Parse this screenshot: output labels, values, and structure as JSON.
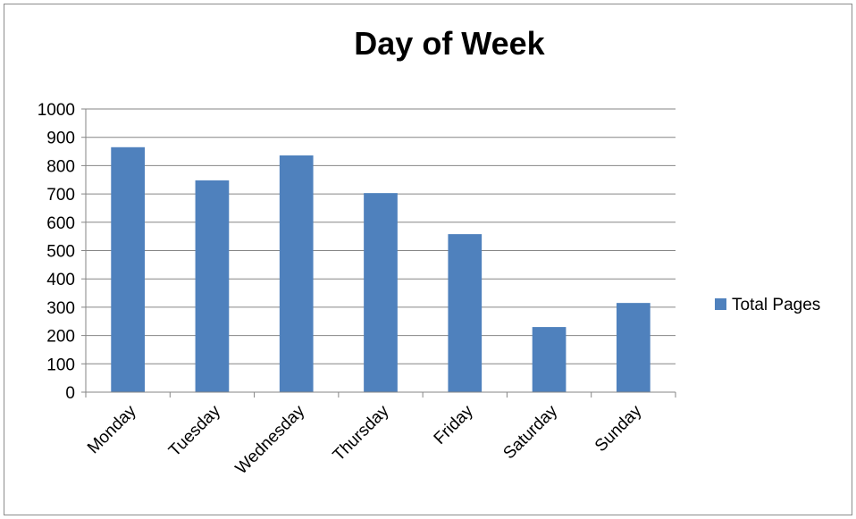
{
  "chart_data": {
    "type": "bar",
    "title": "Day of Week",
    "xlabel": "",
    "ylabel": "",
    "categories": [
      "Monday",
      "Tuesday",
      "Wednesday",
      "Thursday",
      "Friday",
      "Saturday",
      "Sunday"
    ],
    "series": [
      {
        "name": "Total Pages",
        "values": [
          865,
          748,
          836,
          703,
          558,
          230,
          315
        ],
        "color": "#4f81bd"
      }
    ],
    "ylim": [
      0,
      1000
    ],
    "yticks": [
      0,
      100,
      200,
      300,
      400,
      500,
      600,
      700,
      800,
      900,
      1000
    ],
    "grid": true,
    "legend_position": "right"
  },
  "colors": {
    "gridline": "#868686",
    "axis": "#868686",
    "border": "#8c8c8c"
  }
}
